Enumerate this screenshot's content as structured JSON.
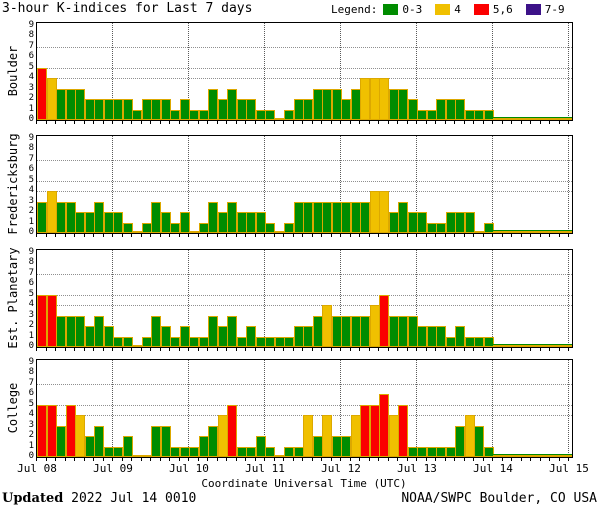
{
  "title": "3-hour K-indices for Last 7 days",
  "legend": {
    "label": "Legend:",
    "items": [
      {
        "label": "0-3",
        "color": "#008C00"
      },
      {
        "label": "4",
        "color": "#F0C000"
      },
      {
        "label": "5,6",
        "color": "#FB0000"
      },
      {
        "label": "7-9",
        "color": "#3C1288"
      }
    ]
  },
  "footer": {
    "updated_label": "Updated",
    "updated_value": " 2022 Jul 14 0010",
    "credit": "NOAA/SWPC Boulder, CO USA"
  },
  "chart_data": {
    "type": "bar",
    "title": "3-hour K-indices for Last 7 days",
    "xlabel": "Coordinate Universal Time (UTC)",
    "x_tick_labels": [
      "Jul 08",
      "Jul 09",
      "Jul 10",
      "Jul 11",
      "Jul 12",
      "Jul 13",
      "Jul 14",
      "Jul 15"
    ],
    "bars_per_day": 8,
    "ylim": [
      0,
      9
    ],
    "y_ticks": [
      0,
      1,
      2,
      3,
      4,
      5,
      6,
      7,
      8,
      9
    ],
    "dotted_gridlines_at_k": [
      4,
      5,
      7
    ],
    "grid": "on",
    "legend_position": "top-right",
    "color_scale": {
      "0-3": "#008C00",
      "4": "#F0C000",
      "5,6": "#FB0000",
      "7-9": "#3C1288"
    },
    "bar_outline_color": "#DCA800",
    "no_data_region": {
      "from": "Jul 14",
      "to": "Jul 15"
    },
    "panels": [
      {
        "station": "Boulder",
        "days": [
          [
            5,
            4,
            3,
            3,
            3,
            2,
            2,
            2
          ],
          [
            2,
            2,
            1,
            2,
            2,
            2,
            1,
            2
          ],
          [
            1,
            1,
            3,
            2,
            3,
            2,
            2,
            1
          ],
          [
            1,
            0,
            1,
            2,
            2,
            3,
            3,
            3
          ],
          [
            2,
            3,
            4,
            4,
            4,
            3,
            3,
            2
          ],
          [
            1,
            1,
            2,
            2,
            2,
            1,
            1,
            1
          ]
        ]
      },
      {
        "station": "Fredericksburg",
        "days": [
          [
            3,
            4,
            3,
            3,
            2,
            2,
            3,
            2
          ],
          [
            2,
            1,
            0,
            1,
            3,
            2,
            1,
            2
          ],
          [
            0,
            1,
            3,
            2,
            3,
            2,
            2,
            2
          ],
          [
            1,
            0,
            1,
            3,
            3,
            3,
            3,
            3
          ],
          [
            3,
            3,
            3,
            4,
            4,
            2,
            3,
            2
          ],
          [
            2,
            1,
            1,
            2,
            2,
            2,
            0,
            1
          ]
        ]
      },
      {
        "station": "Est. Planetary",
        "days": [
          [
            5,
            5,
            3,
            3,
            3,
            2,
            3,
            2
          ],
          [
            1,
            1,
            0,
            1,
            3,
            2,
            1,
            2
          ],
          [
            1,
            1,
            3,
            2,
            3,
            1,
            2,
            1
          ],
          [
            1,
            1,
            1,
            2,
            2,
            3,
            4,
            3
          ],
          [
            3,
            3,
            3,
            4,
            5,
            3,
            3,
            3
          ],
          [
            2,
            2,
            2,
            1,
            2,
            1,
            1,
            1
          ]
        ]
      },
      {
        "station": "College",
        "days": [
          [
            5,
            5,
            3,
            5,
            4,
            2,
            3,
            1
          ],
          [
            1,
            2,
            0,
            0,
            3,
            3,
            1,
            1
          ],
          [
            1,
            2,
            3,
            4,
            5,
            1,
            1,
            2
          ],
          [
            1,
            0,
            1,
            1,
            4,
            2,
            4,
            2
          ],
          [
            2,
            4,
            5,
            5,
            6,
            4,
            5,
            1
          ],
          [
            1,
            1,
            1,
            1,
            3,
            4,
            3,
            1
          ]
        ]
      }
    ]
  }
}
